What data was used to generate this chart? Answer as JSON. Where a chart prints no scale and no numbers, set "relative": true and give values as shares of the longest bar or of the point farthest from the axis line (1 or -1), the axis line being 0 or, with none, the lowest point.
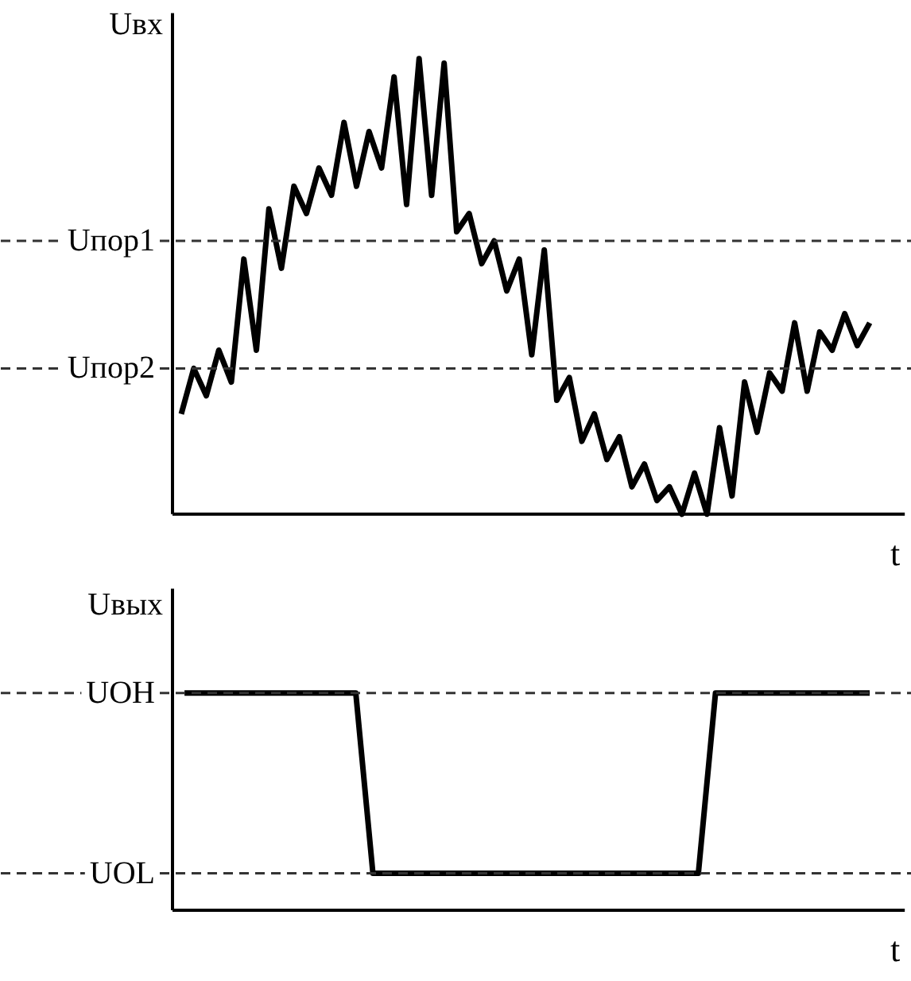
{
  "chart_data": [
    {
      "type": "line",
      "relative": true,
      "ylabel": "Uвх",
      "xlabel": "t",
      "tick_labels": false,
      "line_style": "solid",
      "color": "#000000",
      "categories": [
        null,
        null,
        null,
        null,
        null,
        null,
        null,
        null,
        null,
        null,
        null,
        null,
        null,
        null,
        null,
        null,
        null,
        null,
        null,
        null,
        null,
        null,
        null,
        null,
        null,
        null,
        null,
        null,
        null,
        null,
        null,
        null,
        null,
        null,
        null,
        null,
        null,
        null,
        null,
        null,
        null,
        null,
        null,
        null,
        null,
        null,
        null,
        null,
        null,
        null,
        null,
        null,
        null,
        null,
        null,
        null
      ],
      "values": [
        0.22,
        0.32,
        0.26,
        0.36,
        0.29,
        0.56,
        0.36,
        0.67,
        0.54,
        0.72,
        0.66,
        0.76,
        0.7,
        0.86,
        0.72,
        0.84,
        0.76,
        0.96,
        0.68,
        1.0,
        0.7,
        0.99,
        0.62,
        0.66,
        0.55,
        0.6,
        0.49,
        0.56,
        0.35,
        0.58,
        0.25,
        0.3,
        0.16,
        0.22,
        0.12,
        0.17,
        0.06,
        0.11,
        0.03,
        0.06,
        0.0,
        0.09,
        0.0,
        0.19,
        0.04,
        0.29,
        0.18,
        0.31,
        0.27,
        0.42,
        0.27,
        0.4,
        0.36,
        0.44,
        0.37,
        0.42
      ],
      "ref_lines": [
        {
          "axis": "y",
          "value": 0.6,
          "label": "Uпор1",
          "line_style": "dashed",
          "color": "#333333"
        },
        {
          "axis": "y",
          "value": 0.32,
          "label": "Uпор2",
          "line_style": "dashed",
          "color": "#333333"
        }
      ]
    },
    {
      "type": "line",
      "relative": true,
      "ylabel": "Uвых",
      "xlabel": "t",
      "tick_labels": false,
      "line_style": "solid",
      "color": "#000000",
      "categories": [
        null,
        null,
        null,
        null,
        null,
        null,
        null,
        null,
        null,
        null,
        null,
        null,
        null,
        null,
        null,
        null,
        null,
        null,
        null,
        null,
        null,
        null,
        null,
        null,
        null,
        null,
        null,
        null,
        null,
        null,
        null,
        null,
        null,
        null,
        null,
        null,
        null,
        null,
        null,
        null,
        null
      ],
      "values": [
        1,
        1,
        1,
        1,
        1,
        1,
        1,
        1,
        1,
        1,
        1,
        0.17,
        0.17,
        0.17,
        0.17,
        0.17,
        0.17,
        0.17,
        0.17,
        0.17,
        0.17,
        0.17,
        0.17,
        0.17,
        0.17,
        0.17,
        0.17,
        0.17,
        0.17,
        0.17,
        0.17,
        1,
        1,
        1,
        1,
        1,
        1,
        1,
        1,
        1,
        1
      ],
      "ref_lines": [
        {
          "axis": "y",
          "value": 1,
          "label": "UOH",
          "line_style": "dashed",
          "color": "#333333"
        },
        {
          "axis": "y",
          "value": 0.17,
          "label": "UOL",
          "line_style": "dashed",
          "color": "#333333"
        }
      ]
    }
  ]
}
